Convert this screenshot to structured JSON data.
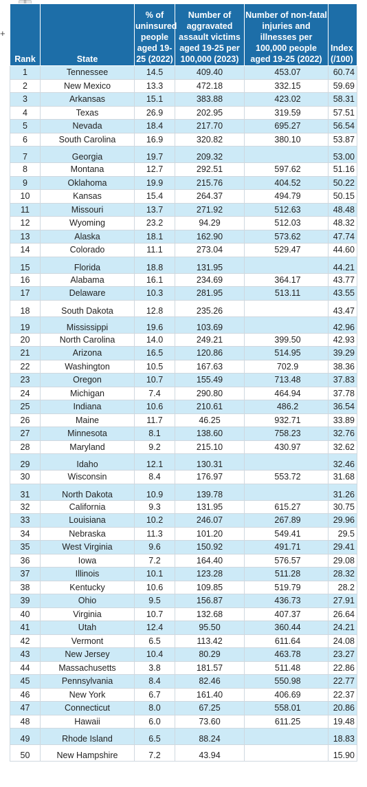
{
  "ui": {
    "plus_glyph": "+",
    "handle_glyph": "⠿"
  },
  "table": {
    "headers": [
      "Rank",
      "State",
      "% of uninsured people aged 19-25 (2022)",
      "Number of aggravated assault victims aged 19-25 per 100,000 (2023)",
      "Number of non-fatal injuries and illnesses per 100,000 people aged 19-25 (2022)",
      "Index (/100)"
    ],
    "rows": [
      [
        "1",
        "Tennessee",
        "14.5",
        "409.40",
        "453.07",
        "60.74"
      ],
      [
        "2",
        "New Mexico",
        "13.3",
        "472.18",
        "332.15",
        "59.69"
      ],
      [
        "3",
        "Arkansas",
        "15.1",
        "383.88",
        "423.02",
        "58.31"
      ],
      [
        "4",
        "Texas",
        "26.9",
        "202.95",
        "319.59",
        "57.51"
      ],
      [
        "5",
        "Nevada",
        "18.4",
        "217.70",
        "695.27",
        "56.54"
      ],
      [
        "6",
        "South Carolina",
        "16.9",
        "320.82",
        "380.10",
        "53.87"
      ],
      [
        "7",
        "Georgia",
        "19.7",
        "209.32",
        "",
        "53.00"
      ],
      [
        "8",
        "Montana",
        "12.7",
        "292.51",
        "597.62",
        "51.16"
      ],
      [
        "9",
        "Oklahoma",
        "19.9",
        "215.76",
        "404.52",
        "50.22"
      ],
      [
        "10",
        "Kansas",
        "15.4",
        "264.37",
        "494.79",
        "50.15"
      ],
      [
        "11",
        "Missouri",
        "13.7",
        "271.92",
        "512.63",
        "48.48"
      ],
      [
        "12",
        "Wyoming",
        "23.2",
        "94.29",
        "512.03",
        "48.32"
      ],
      [
        "13",
        "Alaska",
        "18.1",
        "162.90",
        "573.62",
        "47.74"
      ],
      [
        "14",
        "Colorado",
        "11.1",
        "273.04",
        "529.47",
        "44.60"
      ],
      [
        "15",
        "Florida",
        "18.8",
        "131.95",
        "",
        "44.21"
      ],
      [
        "16",
        "Alabama",
        "16.1",
        "234.69",
        "364.17",
        "43.77"
      ],
      [
        "17",
        "Delaware",
        "10.3",
        "281.95",
        "513.11",
        "43.55"
      ],
      [
        "18",
        "South Dakota",
        "12.8",
        "235.26",
        "",
        "43.47"
      ],
      [
        "19",
        "Mississippi",
        "19.6",
        "103.69",
        "",
        "42.96"
      ],
      [
        "20",
        "North Carolina",
        "14.0",
        "249.21",
        "399.50",
        "42.93"
      ],
      [
        "21",
        "Arizona",
        "16.5",
        "120.86",
        "514.95",
        "39.29"
      ],
      [
        "22",
        "Washington",
        "10.5",
        "167.63",
        "702.9",
        "38.36"
      ],
      [
        "23",
        "Oregon",
        "10.7",
        "155.49",
        "713.48",
        "37.83"
      ],
      [
        "24",
        "Michigan",
        "7.4",
        "290.80",
        "464.94",
        "37.78"
      ],
      [
        "25",
        "Indiana",
        "10.6",
        "210.61",
        "486.2",
        "36.54"
      ],
      [
        "26",
        "Maine",
        "11.7",
        "46.25",
        "932.71",
        "33.89"
      ],
      [
        "27",
        "Minnesota",
        "8.1",
        "138.60",
        "758.23",
        "32.76"
      ],
      [
        "28",
        "Maryland",
        "9.2",
        "215.10",
        "430.97",
        "32.62"
      ],
      [
        "29",
        "Idaho",
        "12.1",
        "130.31",
        "",
        "32.46"
      ],
      [
        "30",
        "Wisconsin",
        "8.4",
        "176.97",
        "553.72",
        "31.68"
      ],
      [
        "31",
        "North Dakota",
        "10.9",
        "139.78",
        "",
        "31.26"
      ],
      [
        "32",
        "California",
        "9.3",
        "131.95",
        "615.27",
        "30.75"
      ],
      [
        "33",
        "Louisiana",
        "10.2",
        "246.07",
        "267.89",
        "29.96"
      ],
      [
        "34",
        "Nebraska",
        "11.3",
        "101.20",
        "549.41",
        "29.5"
      ],
      [
        "35",
        "West Virginia",
        "9.6",
        "150.92",
        "491.71",
        "29.41"
      ],
      [
        "36",
        "Iowa",
        "7.2",
        "164.40",
        "576.57",
        "29.08"
      ],
      [
        "37",
        "Illinois",
        "10.1",
        "123.28",
        "511.28",
        "28.32"
      ],
      [
        "38",
        "Kentucky",
        "10.6",
        "109.85",
        "519.79",
        "28.2"
      ],
      [
        "39",
        "Ohio",
        "9.5",
        "156.87",
        "436.73",
        "27.91"
      ],
      [
        "40",
        "Virginia",
        "10.7",
        "132.68",
        "407.37",
        "26.64"
      ],
      [
        "41",
        "Utah",
        "12.4",
        "95.50",
        "360.44",
        "24.21"
      ],
      [
        "42",
        "Vermont",
        "6.5",
        "113.42",
        "611.64",
        "24.08"
      ],
      [
        "43",
        "New Jersey",
        "10.4",
        "80.29",
        "463.78",
        "23.27"
      ],
      [
        "44",
        "Massachusetts",
        "3.8",
        "181.57",
        "511.48",
        "22.86"
      ],
      [
        "45",
        "Pennsylvania",
        "8.4",
        "82.46",
        "550.98",
        "22.77"
      ],
      [
        "46",
        "New York",
        "6.7",
        "161.40",
        "406.69",
        "22.37"
      ],
      [
        "47",
        "Connecticut",
        "8.0",
        "67.25",
        "558.01",
        "20.86"
      ],
      [
        "48",
        "Hawaii",
        "6.0",
        "73.60",
        "611.25",
        "19.48"
      ],
      [
        "49",
        "Rhode Island",
        "6.5",
        "88.24",
        "",
        "18.83"
      ],
      [
        "50",
        "New Hampshire",
        "7.2",
        "43.94",
        "",
        "15.90"
      ]
    ]
  },
  "colors": {
    "header_bg": "#1d6ea8",
    "header_text": "#ffffff",
    "odd_row_bg": "#cdeaf7",
    "even_row_bg": "#ffffff"
  }
}
